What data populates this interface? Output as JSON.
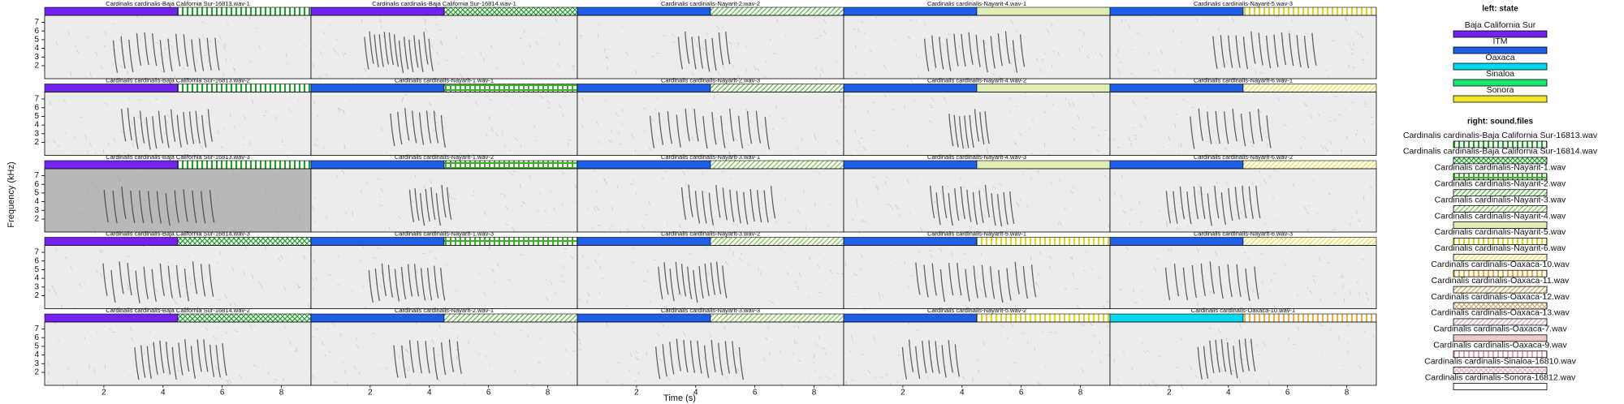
{
  "chart_data": {
    "type": "spectrogram",
    "x_label": "Time (s)",
    "y_label": "Frequency (kHz)",
    "xlim": [
      0,
      9
    ],
    "xticks": [
      2,
      4,
      6,
      8
    ],
    "ylim": [
      0.5,
      7.8
    ],
    "yticks": [
      2,
      3,
      4,
      5,
      6,
      7
    ],
    "panels": [
      {
        "title": "Cardinalis cardinalis-Baja California Sur-16813.wav-1",
        "state": "Baja California Sur"
      },
      {
        "title": "Cardinalis cardinalis-Baja California Sur-16814.wav-1",
        "state": "Baja California Sur"
      },
      {
        "title": "Cardinalis cardinalis-Nayarit-2.wav-2",
        "state": "ITM"
      },
      {
        "title": "Cardinalis cardinalis-Nayarit-4.wav-1",
        "state": "ITM"
      },
      {
        "title": "Cardinalis cardinalis-Nayarit-5.wav-3",
        "state": "ITM"
      },
      {
        "title": "Cardinalis cardinalis-Baja California Sur-16813.wav-2",
        "state": "Baja California Sur"
      },
      {
        "title": "Cardinalis cardinalis-Nayarit-1.wav-1",
        "state": "ITM"
      },
      {
        "title": "Cardinalis cardinalis-Nayarit-2.wav-3",
        "state": "ITM"
      },
      {
        "title": "Cardinalis cardinalis-Nayarit-4.wav-2",
        "state": "ITM"
      },
      {
        "title": "Cardinalis cardinalis-Nayarit-6.wav-1",
        "state": "ITM"
      },
      {
        "title": "Cardinalis cardinalis-Baja California Sur-16813.wav-3",
        "state": "Baja California Sur"
      },
      {
        "title": "Cardinalis cardinalis-Nayarit-1.wav-2",
        "state": "ITM"
      },
      {
        "title": "Cardinalis cardinalis-Nayarit-3.wav-1",
        "state": "ITM"
      },
      {
        "title": "Cardinalis cardinalis-Nayarit-4.wav-3",
        "state": "ITM"
      },
      {
        "title": "Cardinalis cardinalis-Nayarit-6.wav-2",
        "state": "ITM"
      },
      {
        "title": "Cardinalis cardinalis-Baja California Sur-16814.wav-3",
        "state": "Baja California Sur"
      },
      {
        "title": "Cardinalis cardinalis-Nayarit-1.wav-3",
        "state": "ITM"
      },
      {
        "title": "Cardinalis cardinalis-Nayarit-3.wav-2",
        "state": "ITM"
      },
      {
        "title": "Cardinalis cardinalis-Nayarit-5.wav-1",
        "state": "ITM"
      },
      {
        "title": "Cardinalis cardinalis-Nayarit-6.wav-3",
        "state": "ITM"
      },
      {
        "title": "Cardinalis cardinalis-Baja California Sur-16814.wav-2",
        "state": "Baja California Sur"
      },
      {
        "title": "Cardinalis cardinalis-Nayarit-2.wav-1",
        "state": "ITM"
      },
      {
        "title": "Cardinalis cardinalis-Nayarit-3.wav-3",
        "state": "ITM"
      },
      {
        "title": "Cardinalis cardinalis-Nayarit-5.wav-2",
        "state": "ITM"
      },
      {
        "title": "Cardinalis cardinalis-Oaxaca-10.wav-1",
        "state": "Oaxaca"
      }
    ],
    "legend_left": {
      "title": "left: state",
      "items": [
        {
          "name": "Baja California Sur",
          "color": "#7422f0"
        },
        {
          "name": "ITM",
          "color": "#1f5ee8"
        },
        {
          "name": "Oaxaca",
          "color": "#00d8f0"
        },
        {
          "name": "Sinaloa",
          "color": "#19e86a"
        },
        {
          "name": "Sonora",
          "color": "#f2e52a"
        }
      ]
    },
    "legend_right": {
      "title": "right: sound.files",
      "items": [
        {
          "name": "Cardinalis cardinalis-Baja California Sur-16813.wav",
          "color": "#1f9e2a",
          "pattern": "vertical"
        },
        {
          "name": "Cardinalis cardinalis-Baja California Sur-16814.wav",
          "color": "#1f9e2a",
          "pattern": "cross"
        },
        {
          "name": "Cardinalis cardinalis-Nayarit-1.wav",
          "color": "#3cae2a",
          "pattern": "grid"
        },
        {
          "name": "Cardinalis cardinalis-Nayarit-2.wav",
          "color": "#55b53a",
          "pattern": "diagonal"
        },
        {
          "name": "Cardinalis cardinalis-Nayarit-3.wav",
          "color": "#7cc04a",
          "pattern": "diagonal"
        },
        {
          "name": "Cardinalis cardinalis-Nayarit-4.wav",
          "color": "#dfeeb4",
          "pattern": "solid"
        },
        {
          "name": "Cardinalis cardinalis-Nayarit-5.wav",
          "color": "#d8d42a",
          "pattern": "vertical"
        },
        {
          "name": "Cardinalis cardinalis-Nayarit-6.wav",
          "color": "#e8de3a",
          "pattern": "diagonal"
        },
        {
          "name": "Cardinalis cardinalis-Oaxaca-10.wav",
          "color": "#e8b04a",
          "pattern": "vertical"
        },
        {
          "name": "Cardinalis cardinalis-Oaxaca-11.wav",
          "color": "#e0a060",
          "pattern": "diagonal"
        },
        {
          "name": "Cardinalis cardinalis-Oaxaca-12.wav",
          "color": "#d8a880",
          "pattern": "cross"
        },
        {
          "name": "Cardinalis cardinalis-Oaxaca-13.wav",
          "color": "#e0a0a0",
          "pattern": "diagonal"
        },
        {
          "name": "Cardinalis cardinalis-Oaxaca-7.wav",
          "color": "#f0c8c8",
          "pattern": "solid"
        },
        {
          "name": "Cardinalis cardinalis-Oaxaca-9.wav",
          "color": "#e8a8b8",
          "pattern": "vertical"
        },
        {
          "name": "Cardinalis cardinalis-Sinaloa-16810.wav",
          "color": "#e8b0c0",
          "pattern": "cross"
        },
        {
          "name": "Cardinalis cardinalis-Sonora-16812.wav",
          "color": "#ffffff",
          "pattern": "solid"
        }
      ]
    }
  }
}
